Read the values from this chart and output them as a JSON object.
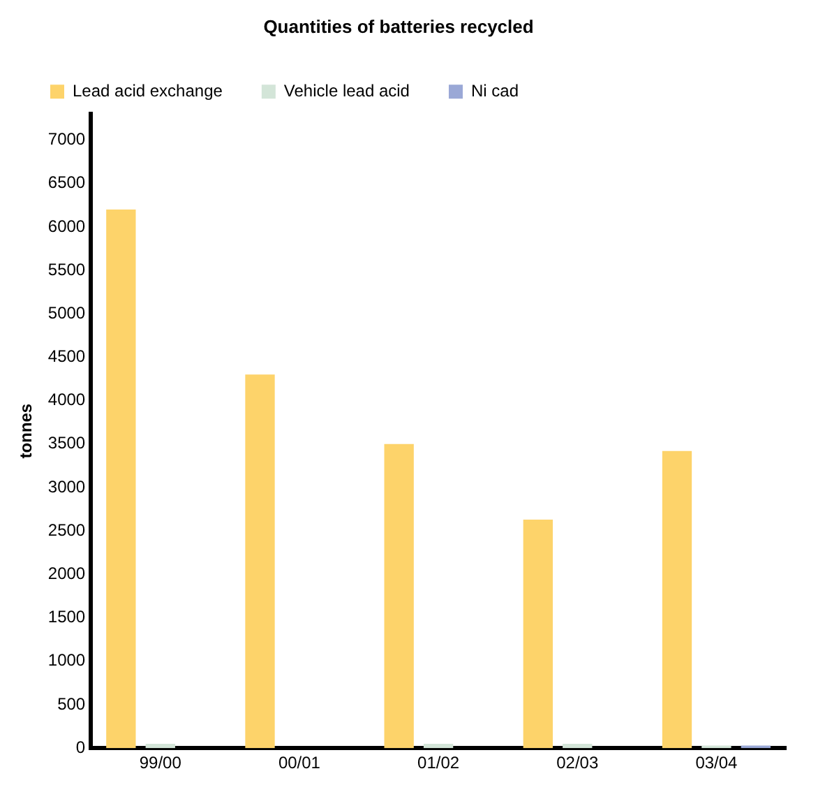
{
  "chart_data": {
    "type": "bar",
    "title": "Quantities of batteries recycled",
    "ylabel": "tonnes",
    "categories": [
      "99/00",
      "00/01",
      "01/02",
      "02/03",
      "03/04"
    ],
    "series": [
      {
        "name": "Lead acid exchange",
        "color": "#fdd36a",
        "values": [
          6200,
          4300,
          3500,
          2630,
          3420
        ]
      },
      {
        "name": "Vehicle lead acid",
        "color": "#d3e5d8",
        "values": [
          50,
          0,
          50,
          50,
          30
        ]
      },
      {
        "name": "Ni cad",
        "color": "#9aa8d6",
        "values": [
          0,
          0,
          0,
          0,
          30
        ]
      }
    ],
    "ylim": [
      0,
      7300
    ],
    "yticks": [
      0,
      500,
      1000,
      1500,
      2000,
      2500,
      3000,
      3500,
      4000,
      4500,
      5000,
      5500,
      6000,
      6500,
      7000
    ],
    "grid": false,
    "legend": "top left"
  }
}
